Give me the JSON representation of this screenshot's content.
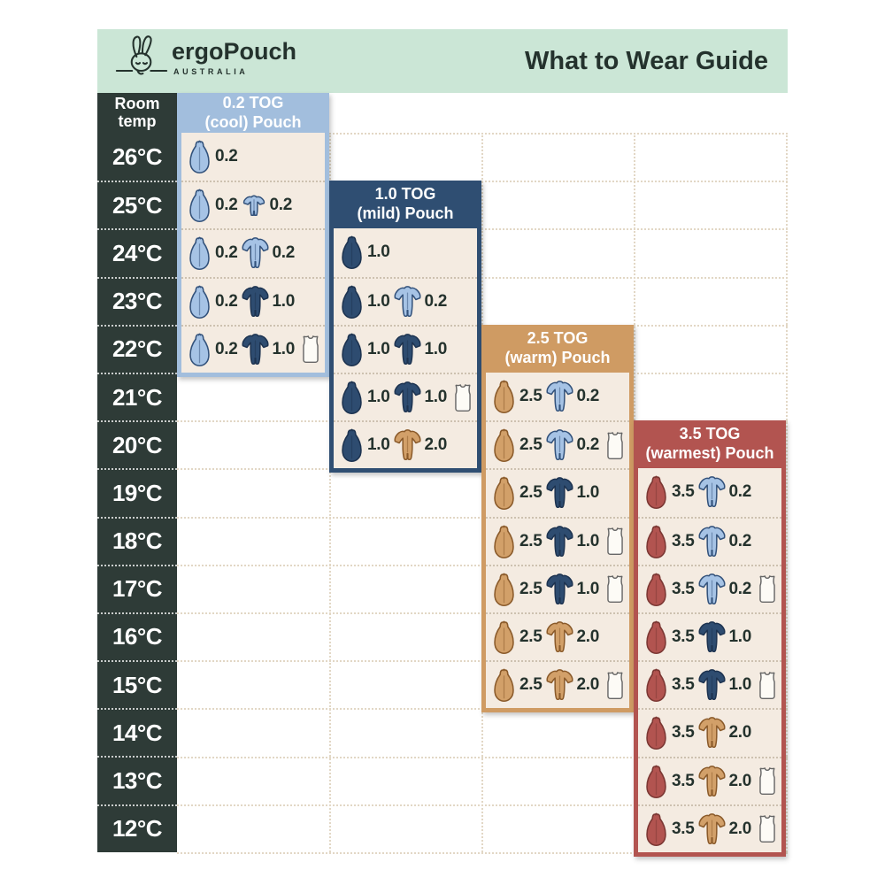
{
  "header": {
    "brand": "ergoPouch",
    "brand_sub": "AUSTRALIA",
    "title": "What to Wear Guide"
  },
  "temp_column": {
    "header_line1": "Room",
    "header_line2": "temp"
  },
  "icons": {
    "pouch": "sleeping-bag-icon",
    "romper": "sleepsuit-icon",
    "romper_short": "short-sleeve-romper-icon",
    "singlet": "singlet-icon"
  },
  "palette": {
    "mint": "#cbe6d6",
    "dark_column": "#2e3b37",
    "ink": "#24322d",
    "panel_body": "#f4ebe1",
    "grid_dots": "#e2d7c5",
    "garments": {
      "lightblue": {
        "fill": "#a6c3e5",
        "stroke": "#33527b"
      },
      "navy": {
        "fill": "#2e4c70",
        "stroke": "#1d3350"
      },
      "tan": {
        "fill": "#d2a069",
        "stroke": "#8a5a2a"
      },
      "red": {
        "fill": "#b25450",
        "stroke": "#7b3733"
      },
      "white": {
        "fill": "#fdfbf6",
        "stroke": "#666666"
      }
    }
  },
  "chart_data": {
    "type": "table",
    "title": "What to Wear Guide",
    "row_header": "Room temp",
    "temps": [
      "26°C",
      "25°C",
      "24°C",
      "23°C",
      "22°C",
      "21°C",
      "20°C",
      "19°C",
      "18°C",
      "17°C",
      "16°C",
      "15°C",
      "14°C",
      "13°C",
      "12°C"
    ],
    "panels": [
      {
        "id": "0.2-tog",
        "title_line1": "0.2 TOG",
        "title_line2": "(cool) Pouch",
        "color": "#a2bedd",
        "rows": [
          {
            "temp": "26°C",
            "items": [
              {
                "icon": "pouch",
                "color": "lightblue",
                "tog": "0.2"
              }
            ]
          },
          {
            "temp": "25°C",
            "items": [
              {
                "icon": "pouch",
                "color": "lightblue",
                "tog": "0.2"
              },
              {
                "icon": "romper_short",
                "color": "lightblue",
                "tog": "0.2"
              }
            ]
          },
          {
            "temp": "24°C",
            "items": [
              {
                "icon": "pouch",
                "color": "lightblue",
                "tog": "0.2"
              },
              {
                "icon": "romper",
                "color": "lightblue",
                "tog": "0.2"
              }
            ]
          },
          {
            "temp": "23°C",
            "items": [
              {
                "icon": "pouch",
                "color": "lightblue",
                "tog": "0.2"
              },
              {
                "icon": "romper",
                "color": "navy",
                "tog": "1.0"
              }
            ]
          },
          {
            "temp": "22°C",
            "items": [
              {
                "icon": "pouch",
                "color": "lightblue",
                "tog": "0.2"
              },
              {
                "icon": "romper",
                "color": "navy",
                "tog": "1.0"
              },
              {
                "icon": "singlet",
                "color": "white",
                "tog": null
              }
            ]
          }
        ]
      },
      {
        "id": "1.0-tog",
        "title_line1": "1.0 TOG",
        "title_line2": "(mild) Pouch",
        "color": "#2f4e72",
        "rows": [
          {
            "temp": "24°C",
            "items": [
              {
                "icon": "pouch",
                "color": "navy",
                "tog": "1.0"
              }
            ]
          },
          {
            "temp": "23°C",
            "items": [
              {
                "icon": "pouch",
                "color": "navy",
                "tog": "1.0"
              },
              {
                "icon": "romper",
                "color": "lightblue",
                "tog": "0.2"
              }
            ]
          },
          {
            "temp": "22°C",
            "items": [
              {
                "icon": "pouch",
                "color": "navy",
                "tog": "1.0"
              },
              {
                "icon": "romper",
                "color": "navy",
                "tog": "1.0"
              }
            ]
          },
          {
            "temp": "21°C",
            "items": [
              {
                "icon": "pouch",
                "color": "navy",
                "tog": "1.0"
              },
              {
                "icon": "romper",
                "color": "navy",
                "tog": "1.0"
              },
              {
                "icon": "singlet",
                "color": "white",
                "tog": null
              }
            ]
          },
          {
            "temp": "20°C",
            "items": [
              {
                "icon": "pouch",
                "color": "navy",
                "tog": "1.0"
              },
              {
                "icon": "romper",
                "color": "tan",
                "tog": "2.0"
              }
            ]
          }
        ]
      },
      {
        "id": "2.5-tog",
        "title_line1": "2.5 TOG",
        "title_line2": "(warm) Pouch",
        "color": "#cf9b63",
        "rows": [
          {
            "temp": "21°C",
            "items": [
              {
                "icon": "pouch",
                "color": "tan",
                "tog": "2.5"
              },
              {
                "icon": "romper",
                "color": "lightblue",
                "tog": "0.2"
              }
            ]
          },
          {
            "temp": "20°C",
            "items": [
              {
                "icon": "pouch",
                "color": "tan",
                "tog": "2.5"
              },
              {
                "icon": "romper",
                "color": "lightblue",
                "tog": "0.2"
              },
              {
                "icon": "singlet",
                "color": "white",
                "tog": null
              }
            ]
          },
          {
            "temp": "19°C",
            "items": [
              {
                "icon": "pouch",
                "color": "tan",
                "tog": "2.5"
              },
              {
                "icon": "romper",
                "color": "navy",
                "tog": "1.0"
              }
            ]
          },
          {
            "temp": "18°C",
            "items": [
              {
                "icon": "pouch",
                "color": "tan",
                "tog": "2.5"
              },
              {
                "icon": "romper",
                "color": "navy",
                "tog": "1.0"
              },
              {
                "icon": "singlet",
                "color": "white",
                "tog": null
              }
            ]
          },
          {
            "temp": "17°C",
            "items": [
              {
                "icon": "pouch",
                "color": "tan",
                "tog": "2.5"
              },
              {
                "icon": "romper",
                "color": "navy",
                "tog": "1.0"
              },
              {
                "icon": "singlet",
                "color": "white",
                "tog": null
              }
            ]
          },
          {
            "temp": "16°C",
            "items": [
              {
                "icon": "pouch",
                "color": "tan",
                "tog": "2.5"
              },
              {
                "icon": "romper",
                "color": "tan",
                "tog": "2.0"
              }
            ]
          },
          {
            "temp": "15°C",
            "items": [
              {
                "icon": "pouch",
                "color": "tan",
                "tog": "2.5"
              },
              {
                "icon": "romper",
                "color": "tan",
                "tog": "2.0"
              },
              {
                "icon": "singlet",
                "color": "white",
                "tog": null
              }
            ]
          }
        ]
      },
      {
        "id": "3.5-tog",
        "title_line1": "3.5 TOG",
        "title_line2": "(warmest) Pouch",
        "color": "#b25450",
        "rows": [
          {
            "temp": "19°C",
            "items": [
              {
                "icon": "pouch",
                "color": "red",
                "tog": "3.5"
              },
              {
                "icon": "romper",
                "color": "lightblue",
                "tog": "0.2"
              }
            ]
          },
          {
            "temp": "18°C",
            "items": [
              {
                "icon": "pouch",
                "color": "red",
                "tog": "3.5"
              },
              {
                "icon": "romper",
                "color": "lightblue",
                "tog": "0.2"
              }
            ]
          },
          {
            "temp": "17°C",
            "items": [
              {
                "icon": "pouch",
                "color": "red",
                "tog": "3.5"
              },
              {
                "icon": "romper",
                "color": "lightblue",
                "tog": "0.2"
              },
              {
                "icon": "singlet",
                "color": "white",
                "tog": null
              }
            ]
          },
          {
            "temp": "16°C",
            "items": [
              {
                "icon": "pouch",
                "color": "red",
                "tog": "3.5"
              },
              {
                "icon": "romper",
                "color": "navy",
                "tog": "1.0"
              }
            ]
          },
          {
            "temp": "15°C",
            "items": [
              {
                "icon": "pouch",
                "color": "red",
                "tog": "3.5"
              },
              {
                "icon": "romper",
                "color": "navy",
                "tog": "1.0"
              },
              {
                "icon": "singlet",
                "color": "white",
                "tog": null
              }
            ]
          },
          {
            "temp": "14°C",
            "items": [
              {
                "icon": "pouch",
                "color": "red",
                "tog": "3.5"
              },
              {
                "icon": "romper",
                "color": "tan",
                "tog": "2.0"
              }
            ]
          },
          {
            "temp": "13°C",
            "items": [
              {
                "icon": "pouch",
                "color": "red",
                "tog": "3.5"
              },
              {
                "icon": "romper",
                "color": "tan",
                "tog": "2.0"
              },
              {
                "icon": "singlet",
                "color": "white",
                "tog": null
              }
            ]
          },
          {
            "temp": "12°C",
            "items": [
              {
                "icon": "pouch",
                "color": "red",
                "tog": "3.5"
              },
              {
                "icon": "romper",
                "color": "tan",
                "tog": "2.0"
              },
              {
                "icon": "singlet",
                "color": "white",
                "tog": null
              }
            ]
          }
        ]
      }
    ]
  }
}
